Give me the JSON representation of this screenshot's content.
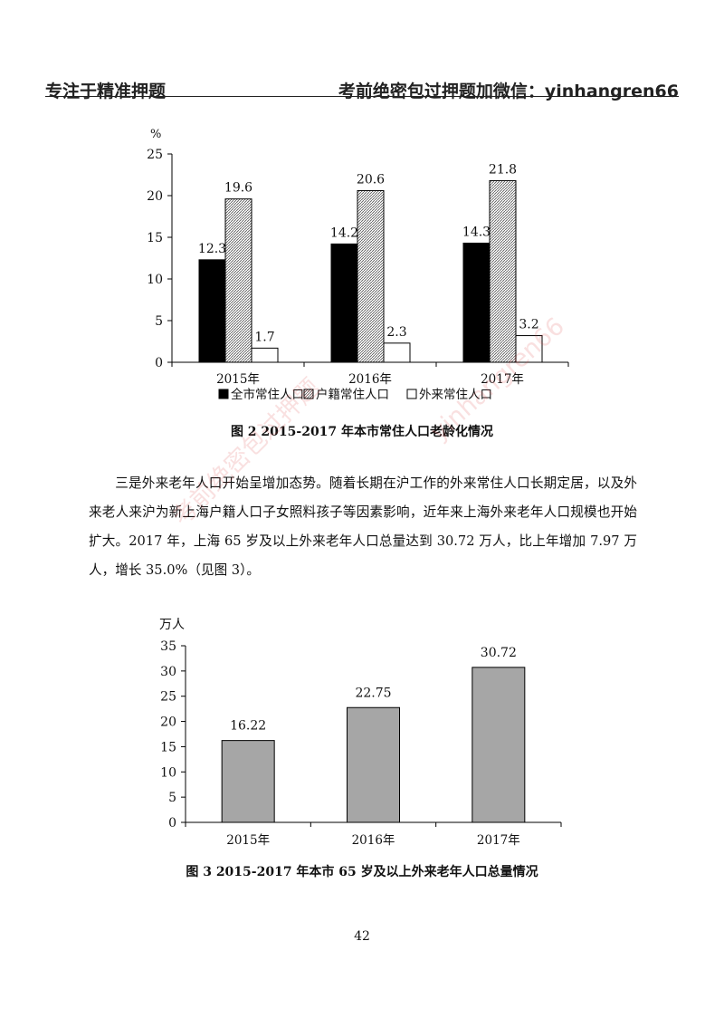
{
  "header": {
    "left": "专注于精准押题",
    "right": "考前绝密包过押题加微信：yinhangren66"
  },
  "figure2": {
    "caption": "图 2 2015-2017 年本市常住人口老龄化情况",
    "chart_data": {
      "type": "bar",
      "categories": [
        "2015年",
        "2016年",
        "2017年"
      ],
      "unit": "%",
      "ylim": [
        0,
        25
      ],
      "yticks": [
        0,
        5,
        10,
        15,
        20,
        25
      ],
      "series": [
        {
          "name": "全市常住人口",
          "values": [
            12.3,
            14.2,
            14.3
          ],
          "labels": [
            "12.3",
            "14.2",
            "14.3"
          ],
          "style": "solid"
        },
        {
          "name": "户籍常住人口",
          "values": [
            19.6,
            20.6,
            21.8
          ],
          "labels": [
            "19.6",
            "20.6",
            "21.8"
          ],
          "style": "hatched"
        },
        {
          "name": "外来常住人口",
          "values": [
            1.7,
            2.3,
            3.2
          ],
          "labels": [
            "1.7",
            "2.3",
            "3.2"
          ],
          "style": "hollow"
        }
      ],
      "legend_position": "bottom",
      "colors": {
        "solid": "#000000",
        "hollow": "#ffffff",
        "hatch": "#555555"
      }
    }
  },
  "paragraph": "三是外来老年人口开始呈增加态势。随着长期在沪工作的外来常住人口长期定居，以及外来老人来沪为新上海户籍人口子女照料孩子等因素影响，近年来上海外来老年人口规模也开始扩大。2017 年，上海 65 岁及以上外来老年人口总量达到 30.72 万人，比上年增加 7.97 万人，增长 35.0%（见图 3）。",
  "figure3": {
    "caption": "图 3 2015-2017 年本市 65 岁及以上外来老年人口总量情况",
    "chart_data": {
      "type": "bar",
      "categories": [
        "2015年",
        "2016年",
        "2017年"
      ],
      "unit": "万人",
      "ylim": [
        0,
        35
      ],
      "yticks": [
        0,
        5,
        10,
        15,
        20,
        25,
        30,
        35
      ],
      "values": [
        16.22,
        22.75,
        30.72
      ],
      "labels": [
        "16.22",
        "22.75",
        "30.72"
      ],
      "colors": {
        "bar": "#a6a6a6"
      }
    }
  },
  "page_number": "42",
  "watermark": {
    "text1": "考前绝密包过押题",
    "text2": "yinhangren66"
  }
}
